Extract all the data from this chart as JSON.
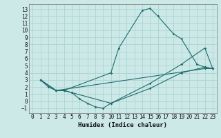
{
  "xlabel": "Humidex (Indice chaleur)",
  "background_color": "#cce9e8",
  "grid_color": "#aad4d3",
  "line_color": "#1e6b6b",
  "xlim": [
    -0.5,
    23.5
  ],
  "ylim": [
    -1.7,
    13.7
  ],
  "xticks": [
    0,
    1,
    2,
    3,
    4,
    5,
    6,
    7,
    8,
    9,
    10,
    11,
    12,
    13,
    14,
    15,
    16,
    17,
    18,
    19,
    20,
    21,
    22,
    23
  ],
  "yticks": [
    -1,
    0,
    1,
    2,
    3,
    4,
    5,
    6,
    7,
    8,
    9,
    10,
    11,
    12,
    13
  ],
  "line1_x": [
    1,
    2,
    3,
    4,
    10,
    11,
    14,
    15,
    16,
    18,
    19,
    21,
    22,
    23
  ],
  "line1_y": [
    3,
    2,
    1.5,
    1.5,
    4,
    7.5,
    12.8,
    13.1,
    12.0,
    9.5,
    8.8,
    5.2,
    4.8,
    4.6
  ],
  "line2_x": [
    1,
    3,
    4,
    5,
    10,
    15,
    19,
    22,
    23
  ],
  "line2_y": [
    3,
    1.5,
    1.5,
    1.2,
    -0.3,
    2.5,
    5.2,
    7.5,
    4.6
  ],
  "line3_x": [
    1,
    3,
    4,
    5,
    6,
    7,
    8,
    9,
    10,
    15,
    19,
    22,
    23
  ],
  "line3_y": [
    3,
    1.5,
    1.5,
    1.2,
    0.3,
    -0.3,
    -0.8,
    -1.0,
    -0.3,
    1.8,
    4.0,
    4.8,
    4.6
  ],
  "line4_x": [
    1,
    3,
    22,
    23
  ],
  "line4_y": [
    3,
    1.5,
    4.6,
    4.6
  ]
}
